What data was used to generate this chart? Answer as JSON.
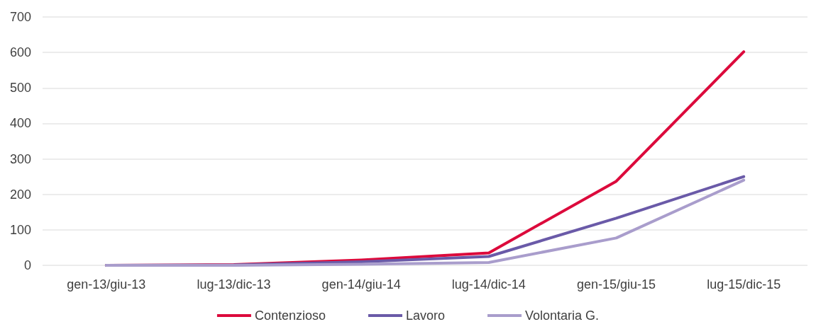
{
  "chart_data": {
    "type": "line",
    "categories": [
      "gen-13/giu-13",
      "lug-13/dic-13",
      "gen-14/giu-14",
      "lug-14/dic-14",
      "gen-15/giu-15",
      "lug-15/dic-15"
    ],
    "series": [
      {
        "name": "Contenzioso",
        "color": "#dc0a3c",
        "values": [
          0,
          2,
          15,
          35,
          237,
          602
        ]
      },
      {
        "name": "Lavoro",
        "color": "#6a5aa8",
        "values": [
          0,
          1,
          10,
          25,
          133,
          250
        ]
      },
      {
        "name": "Volontaria G.",
        "color": "#a99dcc",
        "values": [
          0,
          0,
          3,
          8,
          77,
          240
        ]
      }
    ],
    "ylim": [
      0,
      700
    ],
    "yticks": [
      0,
      100,
      200,
      300,
      400,
      500,
      600,
      700
    ],
    "grid": "y",
    "legend": "bottom",
    "marker": "none",
    "line_style": "solid"
  }
}
